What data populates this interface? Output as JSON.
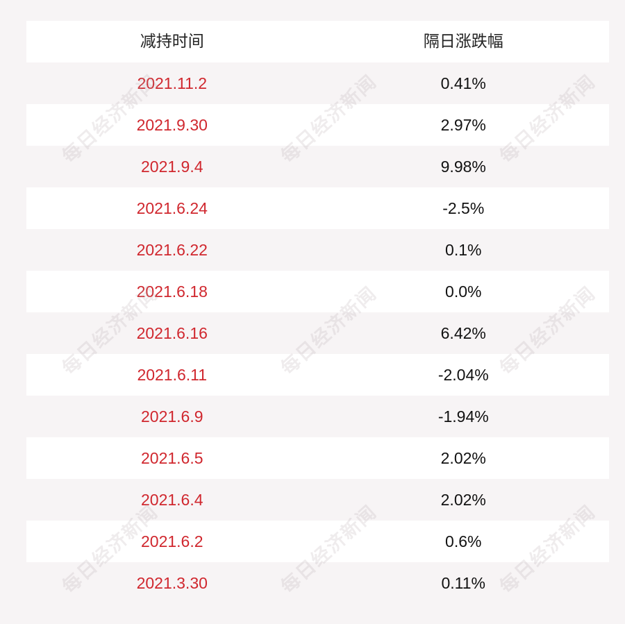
{
  "chart_data": {
    "type": "table",
    "columns": [
      "减持时间",
      "隔日涨跌幅"
    ],
    "rows": [
      [
        "2021.11.2",
        "0.41%"
      ],
      [
        "2021.9.30",
        "2.97%"
      ],
      [
        "2021.9.4",
        "9.98%"
      ],
      [
        "2021.6.24",
        "-2.5%"
      ],
      [
        "2021.6.22",
        "0.1%"
      ],
      [
        "2021.6.18",
        "0.0%"
      ],
      [
        "2021.6.16",
        "6.42%"
      ],
      [
        "2021.6.11",
        "-2.04%"
      ],
      [
        "2021.6.9",
        "-1.94%"
      ],
      [
        "2021.6.5",
        "2.02%"
      ],
      [
        "2021.6.4",
        "2.02%"
      ],
      [
        "2021.6.2",
        "0.6%"
      ],
      [
        "2021.3.30",
        "0.11%"
      ]
    ]
  },
  "watermark": "每日经济新闻",
  "colors": {
    "date_text": "#d0272e",
    "value_text": "#111111",
    "header_text": "#222222",
    "row_white": "#ffffff",
    "row_tint": "#f7f4f5"
  }
}
